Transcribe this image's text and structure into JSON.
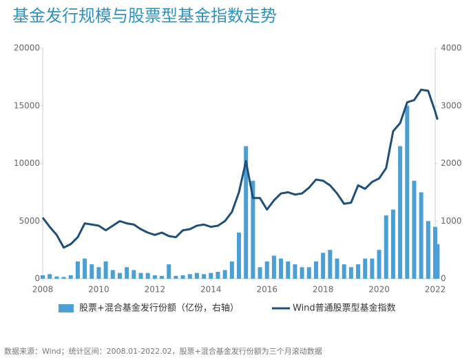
{
  "chart_data": {
    "type": "bar-line",
    "title": "基金发行规模与股票型基金指数走势",
    "source": "数据来源：Wind；统计区间：2008.01-2022.02，股票+混合基金发行份额为三个月滚动数据",
    "x": [
      2008,
      2008.25,
      2008.5,
      2008.75,
      2009,
      2009.25,
      2009.5,
      2009.75,
      2010,
      2010.25,
      2010.5,
      2010.75,
      2011,
      2011.25,
      2011.5,
      2011.75,
      2012,
      2012.25,
      2012.5,
      2012.75,
      2013,
      2013.25,
      2013.5,
      2013.75,
      2014,
      2014.25,
      2014.5,
      2014.75,
      2015,
      2015.25,
      2015.5,
      2015.75,
      2016,
      2016.25,
      2016.5,
      2016.75,
      2017,
      2017.25,
      2017.5,
      2017.75,
      2018,
      2018.25,
      2018.5,
      2018.75,
      2019,
      2019.25,
      2019.5,
      2019.75,
      2020,
      2020.25,
      2020.5,
      2020.75,
      2021,
      2021.25,
      2021.5,
      2021.75,
      2022,
      2022.083
    ],
    "series": [
      {
        "name": "股票+混合基金发行份额（亿份，右轴）",
        "type": "bar",
        "axis": "y2",
        "color": "#4a9fd4",
        "values": [
          60,
          80,
          40,
          30,
          60,
          300,
          350,
          250,
          200,
          300,
          150,
          100,
          200,
          150,
          100,
          100,
          60,
          50,
          250,
          50,
          60,
          80,
          100,
          80,
          100,
          120,
          150,
          300,
          800,
          2300,
          1700,
          200,
          300,
          400,
          350,
          300,
          250,
          200,
          200,
          300,
          450,
          500,
          350,
          250,
          200,
          250,
          350,
          350,
          500,
          1100,
          1200,
          2300,
          3000,
          1700,
          1500,
          1000,
          900,
          600
        ]
      },
      {
        "name": "Wind普通股票型基金指数",
        "type": "line",
        "color": "#1f4e79",
        "values": [
          5300,
          4500,
          3800,
          2700,
          3000,
          3600,
          4800,
          4700,
          4600,
          4200,
          4600,
          5000,
          4800,
          4700,
          4300,
          4000,
          3800,
          4000,
          3700,
          3600,
          4200,
          4300,
          4600,
          4700,
          4500,
          4600,
          5000,
          5800,
          7500,
          10200,
          7000,
          7000,
          6000,
          6800,
          7400,
          7500,
          7300,
          7400,
          7900,
          8600,
          8500,
          8100,
          7400,
          6500,
          6600,
          8100,
          7800,
          8400,
          8700,
          9600,
          12800,
          13500,
          15300,
          15500,
          16400,
          16300,
          14500,
          13800
        ]
      }
    ],
    "xlim": [
      2008,
      2022
    ],
    "xticks": [
      2008,
      2010,
      2012,
      2014,
      2016,
      2018,
      2020,
      2022
    ],
    "ylim": [
      0,
      20000
    ],
    "yticks": [
      0,
      5000,
      10000,
      15000,
      20000
    ],
    "y2lim": [
      0,
      4000
    ],
    "y2ticks": [
      0,
      1000,
      2000,
      3000,
      4000
    ]
  }
}
